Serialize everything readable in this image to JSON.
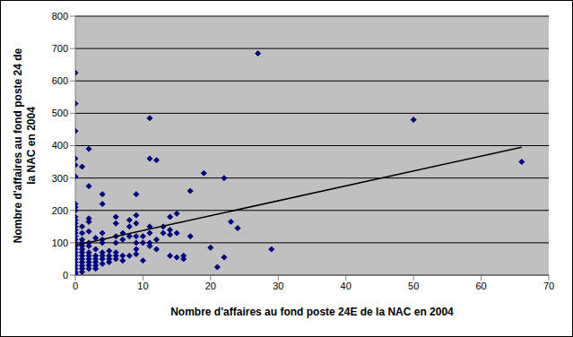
{
  "chart_data": {
    "type": "scatter",
    "xlabel": "Nombre d'affaires au fond poste 24E de la NAC en 2004",
    "ylabel": "Nombre d'affaires au fond poste 24 de la NAC en 2004",
    "x": [
      0,
      0,
      0,
      0,
      0,
      0,
      0,
      0,
      0,
      0,
      0,
      0,
      0,
      0,
      0,
      0,
      0,
      0,
      0,
      0,
      0,
      0,
      0,
      0,
      0,
      0,
      0,
      0,
      1,
      1,
      1,
      1,
      1,
      1,
      1,
      1,
      1,
      1,
      1,
      1,
      1,
      1,
      2,
      2,
      2,
      2,
      2,
      2,
      2,
      2,
      2,
      2,
      2,
      2,
      2,
      3,
      3,
      3,
      3,
      3,
      3,
      3,
      4,
      4,
      4,
      4,
      4,
      4,
      4,
      4,
      4,
      5,
      5,
      5,
      5,
      6,
      6,
      6,
      6,
      6,
      6,
      6,
      7,
      7,
      7,
      7,
      8,
      8,
      8,
      8,
      9,
      9,
      9,
      9,
      9,
      9,
      9,
      10,
      10,
      10,
      11,
      11,
      11,
      11,
      11,
      11,
      12,
      12,
      12,
      13,
      13,
      14,
      14,
      14,
      14,
      15,
      15,
      15,
      16,
      16,
      17,
      17,
      19,
      20,
      21,
      22,
      22,
      23,
      24,
      27,
      29,
      50,
      66
    ],
    "values": [
      625,
      530,
      445,
      360,
      340,
      305,
      220,
      210,
      200,
      180,
      170,
      160,
      150,
      140,
      130,
      120,
      110,
      100,
      90,
      80,
      70,
      60,
      50,
      40,
      30,
      20,
      10,
      5,
      335,
      150,
      130,
      110,
      100,
      90,
      80,
      70,
      60,
      50,
      40,
      30,
      20,
      10,
      390,
      275,
      175,
      165,
      135,
      100,
      90,
      70,
      60,
      50,
      40,
      30,
      20,
      115,
      80,
      60,
      50,
      40,
      30,
      20,
      250,
      220,
      130,
      110,
      100,
      70,
      60,
      50,
      35,
      75,
      60,
      50,
      40,
      180,
      160,
      120,
      100,
      70,
      60,
      50,
      130,
      110,
      60,
      45,
      170,
      150,
      120,
      60,
      185,
      160,
      250,
      120,
      100,
      80,
      65,
      45,
      100,
      120,
      485,
      360,
      150,
      130,
      100,
      90,
      355,
      110,
      80,
      150,
      130,
      180,
      140,
      125,
      60,
      190,
      130,
      55,
      60,
      50,
      260,
      120,
      315,
      85,
      25,
      300,
      55,
      165,
      145,
      685,
      80,
      480,
      350
    ],
    "color": "#000080",
    "marker": "diamond",
    "xlim": [
      0,
      70
    ],
    "xticks": [
      0,
      10,
      20,
      30,
      40,
      50,
      60,
      70
    ],
    "ylim": [
      0,
      800
    ],
    "yticks": [
      0,
      100,
      200,
      300,
      400,
      500,
      600,
      700,
      800
    ],
    "grid": true,
    "trendline": {
      "x": [
        0,
        66
      ],
      "values": [
        92,
        395
      ]
    }
  }
}
